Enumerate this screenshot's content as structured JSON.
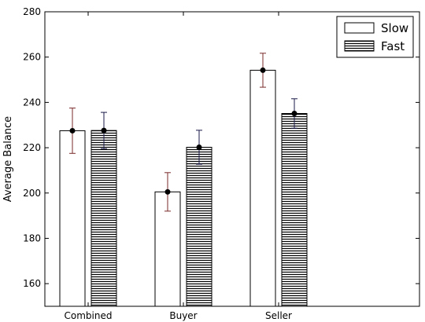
{
  "chart_data": {
    "type": "bar",
    "title": "",
    "xlabel": "",
    "ylabel": "Average Balance",
    "ylim": [
      150,
      280
    ],
    "yticks": [
      160,
      180,
      200,
      220,
      240,
      260,
      280
    ],
    "categories": [
      "Combined",
      "Buyer",
      "Seller"
    ],
    "grid": false,
    "legend": {
      "placement": "top-right"
    },
    "series": [
      {
        "name": "Slow",
        "values": [
          227.5,
          200.5,
          254.2
        ],
        "error": [
          10,
          8.5,
          7.5
        ],
        "fill": "white",
        "color": "#ffffff",
        "edge_color": "#000000",
        "errorbar_color": "#7a2a2a"
      },
      {
        "name": "Fast",
        "values": [
          227.6,
          220.2,
          235.1
        ],
        "error": [
          8,
          7.5,
          6.5
        ],
        "fill": "horizontal-hatch",
        "color": "#000000",
        "edge_color": "#000000",
        "errorbar_color": "#1a1a4a"
      }
    ]
  }
}
